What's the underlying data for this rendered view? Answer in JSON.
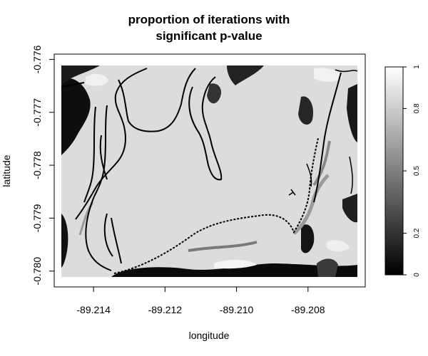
{
  "chart_data": {
    "type": "heatmap",
    "title_lines": [
      "proportion of iterations with",
      "significant p-value"
    ],
    "xlabel": "longitude",
    "ylabel": "latitude",
    "x_ticks": [
      {
        "value": -89.214,
        "label": "-89.214"
      },
      {
        "value": -89.212,
        "label": "-89.212"
      },
      {
        "value": -89.21,
        "label": "-89.210"
      },
      {
        "value": -89.208,
        "label": "-89.208"
      }
    ],
    "y_ticks": [
      {
        "value": -0.776,
        "label": "-0.776"
      },
      {
        "value": -0.777,
        "label": "-0.777"
      },
      {
        "value": -0.778,
        "label": "-0.778"
      },
      {
        "value": -0.779,
        "label": "-0.779"
      },
      {
        "value": -0.78,
        "label": "-0.780"
      }
    ],
    "xlim": [
      -89.2151,
      -89.2064
    ],
    "ylim": [
      -0.7803,
      -0.7759
    ],
    "data_extent": {
      "x": [
        -89.2148,
        -89.2066
      ],
      "y": [
        -0.7802,
        -0.7761
      ]
    },
    "value_range": [
      0,
      1
    ],
    "background_value": 0.88,
    "colorbar": {
      "palette": [
        "#000000",
        "#ffffff"
      ],
      "ticks": [
        {
          "value": 0,
          "label": "0"
        },
        {
          "value": 0.2,
          "label": "0.2"
        },
        {
          "value": 0.5,
          "label": "0.5"
        },
        {
          "value": 0.8,
          "label": "0.8"
        },
        {
          "value": 1,
          "label": "1"
        }
      ]
    },
    "grid": false,
    "legend": "right"
  }
}
